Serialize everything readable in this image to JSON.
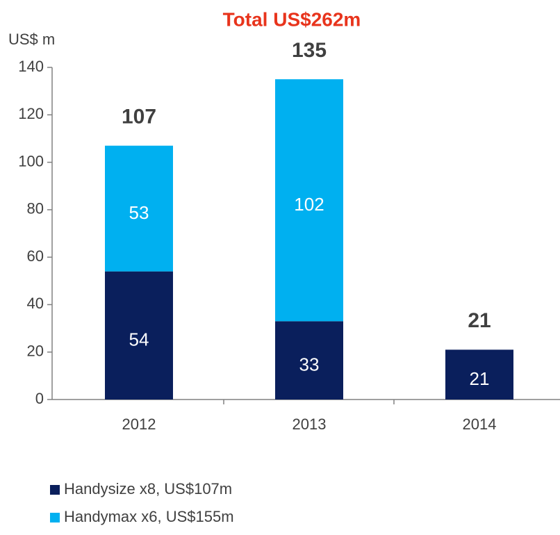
{
  "chart_data": {
    "type": "stacked_bar",
    "title": "Total US$262m",
    "y_axis_label": "US$ m",
    "categories": [
      "2012",
      "2013",
      "2014"
    ],
    "series": [
      {
        "name": "Handysize x8, US$107m",
        "color": "#0a1f5c",
        "values": [
          54,
          33,
          21
        ]
      },
      {
        "name": "Handymax x6, US$155m",
        "color": "#00b0f0",
        "values": [
          53,
          102,
          null
        ]
      }
    ],
    "totals": [
      107,
      135,
      21
    ],
    "ylim": [
      0,
      140
    ],
    "yticks": [
      0,
      20,
      40,
      60,
      80,
      100,
      120,
      140
    ]
  }
}
